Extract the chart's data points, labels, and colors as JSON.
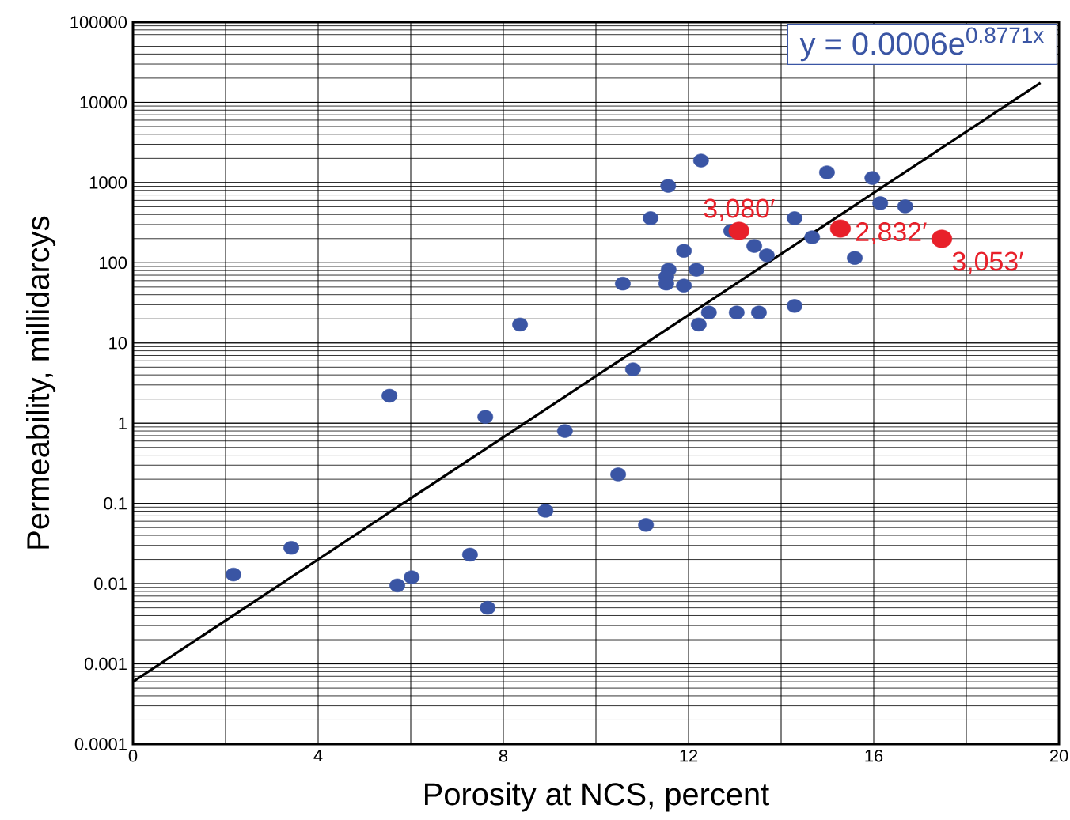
{
  "chart_data": {
    "type": "scatter",
    "xlabel": "Porosity at NCS, percent",
    "ylabel": "Permeability, millidarcys",
    "log": "y",
    "xlim": [
      0,
      20
    ],
    "ylim": [
      0.0001,
      100000
    ],
    "xticks": [
      0,
      {
        "value": 2,
        "label": null
      },
      4,
      {
        "value": 6,
        "label": null
      },
      8,
      {
        "value": 10,
        "label": null
      },
      12,
      {
        "value": 14,
        "label": null
      },
      16,
      {
        "value": 18,
        "label": null
      },
      20
    ],
    "yticks": [
      0.0001,
      0.001,
      0.01,
      0.1,
      1,
      10,
      100,
      1000,
      10000,
      100000
    ],
    "grid": true,
    "series": [
      {
        "color": "#3a55a4",
        "marker": "circle",
        "x": [
          2.17,
          3.42,
          5.54,
          5.71,
          6.02,
          7.28,
          7.61,
          7.66,
          8.36,
          8.91,
          9.33,
          10.48,
          10.58,
          10.8,
          11.08,
          11.18,
          11.56,
          11.57,
          11.52,
          11.52,
          11.9,
          11.9,
          12.17,
          12.22,
          12.27,
          12.44,
          12.92,
          13.04,
          13.42,
          13.52,
          13.69,
          14.29,
          14.29,
          14.67,
          14.99,
          15.59,
          15.97,
          16.14,
          16.68
        ],
        "values": [
          0.013,
          0.028,
          2.2,
          0.0095,
          0.012,
          0.023,
          1.2,
          0.005,
          17,
          0.081,
          0.8,
          0.23,
          55,
          4.7,
          0.054,
          360,
          910,
          82,
          67,
          55,
          141,
          52,
          82,
          17,
          1880,
          24,
          250,
          24,
          162,
          24,
          124,
          360,
          29,
          208,
          1340,
          115,
          1140,
          553,
          505
        ]
      },
      {
        "color": "#e8202a",
        "marker": "circle",
        "x": [
          13.09,
          15.28,
          17.47
        ],
        "values": [
          250,
          267,
          199
        ]
      },
      {
        "type": "line",
        "color": "#000000",
        "marker": "none",
        "line_style": "solid",
        "x": [
          0,
          19.6
        ],
        "values": [
          0.0006,
          17500
        ]
      }
    ],
    "annotations": [
      "y = 0.0006e$^{0.8771x}$",
      {
        "text": "3,080′",
        "x": 13.09,
        "y": 250
      },
      {
        "text": "2,832′",
        "x": 15.28,
        "y": 267
      },
      {
        "text": "3,053′",
        "x": 17.47,
        "y": 199
      }
    ]
  }
}
